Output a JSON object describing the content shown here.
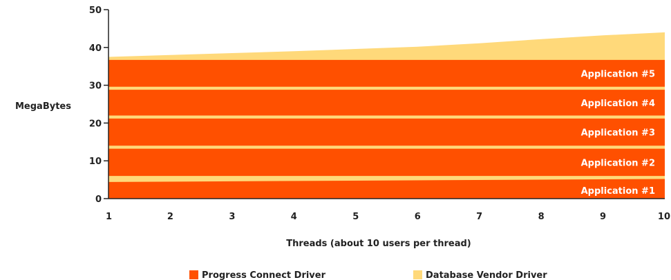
{
  "chart_data": {
    "type": "area",
    "title": "",
    "xlabel": "Threads (about 10 users per thread)",
    "ylabel": "MegaBytes",
    "x": [
      1,
      2,
      3,
      4,
      5,
      6,
      7,
      8,
      9,
      10
    ],
    "xlim": [
      1,
      10
    ],
    "ylim": [
      0,
      50
    ],
    "yticks": [
      0,
      10,
      20,
      30,
      40,
      50
    ],
    "grid": false,
    "legend_position": "bottom",
    "series": [
      {
        "name": "Database Vendor Driver",
        "color": "#ffd97a",
        "values": [
          37.5,
          38,
          38.5,
          39,
          39.6,
          40.2,
          41.1,
          42.2,
          43.2,
          44
        ]
      },
      {
        "name": "Progress Connect Driver",
        "color": "#ff5000",
        "values": [
          36.7,
          36.7,
          36.7,
          36.7,
          36.7,
          36.7,
          36.7,
          36.7,
          36.7,
          36.7
        ]
      }
    ],
    "applications": [
      {
        "label": "Application #1",
        "bottom": 0,
        "top": 4.4
      },
      {
        "label": "Application #2",
        "bottom": 6.0,
        "top": 13.2
      },
      {
        "label": "Application #3",
        "bottom": 14.0,
        "top": 21.2
      },
      {
        "label": "Application #4",
        "bottom": 22.0,
        "top": 28.8
      },
      {
        "label": "Application #5",
        "bottom": 29.6,
        "top": 36.7
      }
    ],
    "separators": [
      {
        "x": [
          1,
          10
        ],
        "bottom": [
          4.4,
          5.2
        ],
        "top": [
          6.0,
          6.0
        ]
      },
      {
        "x": [
          1,
          10
        ],
        "bottom": [
          13.2,
          13.2
        ],
        "top": [
          14.0,
          14.0
        ]
      },
      {
        "x": [
          1,
          10
        ],
        "bottom": [
          21.2,
          21.2
        ],
        "top": [
          22.0,
          22.0
        ]
      },
      {
        "x": [
          1,
          10
        ],
        "bottom": [
          28.8,
          28.8
        ],
        "top": [
          29.6,
          29.6
        ]
      }
    ]
  }
}
